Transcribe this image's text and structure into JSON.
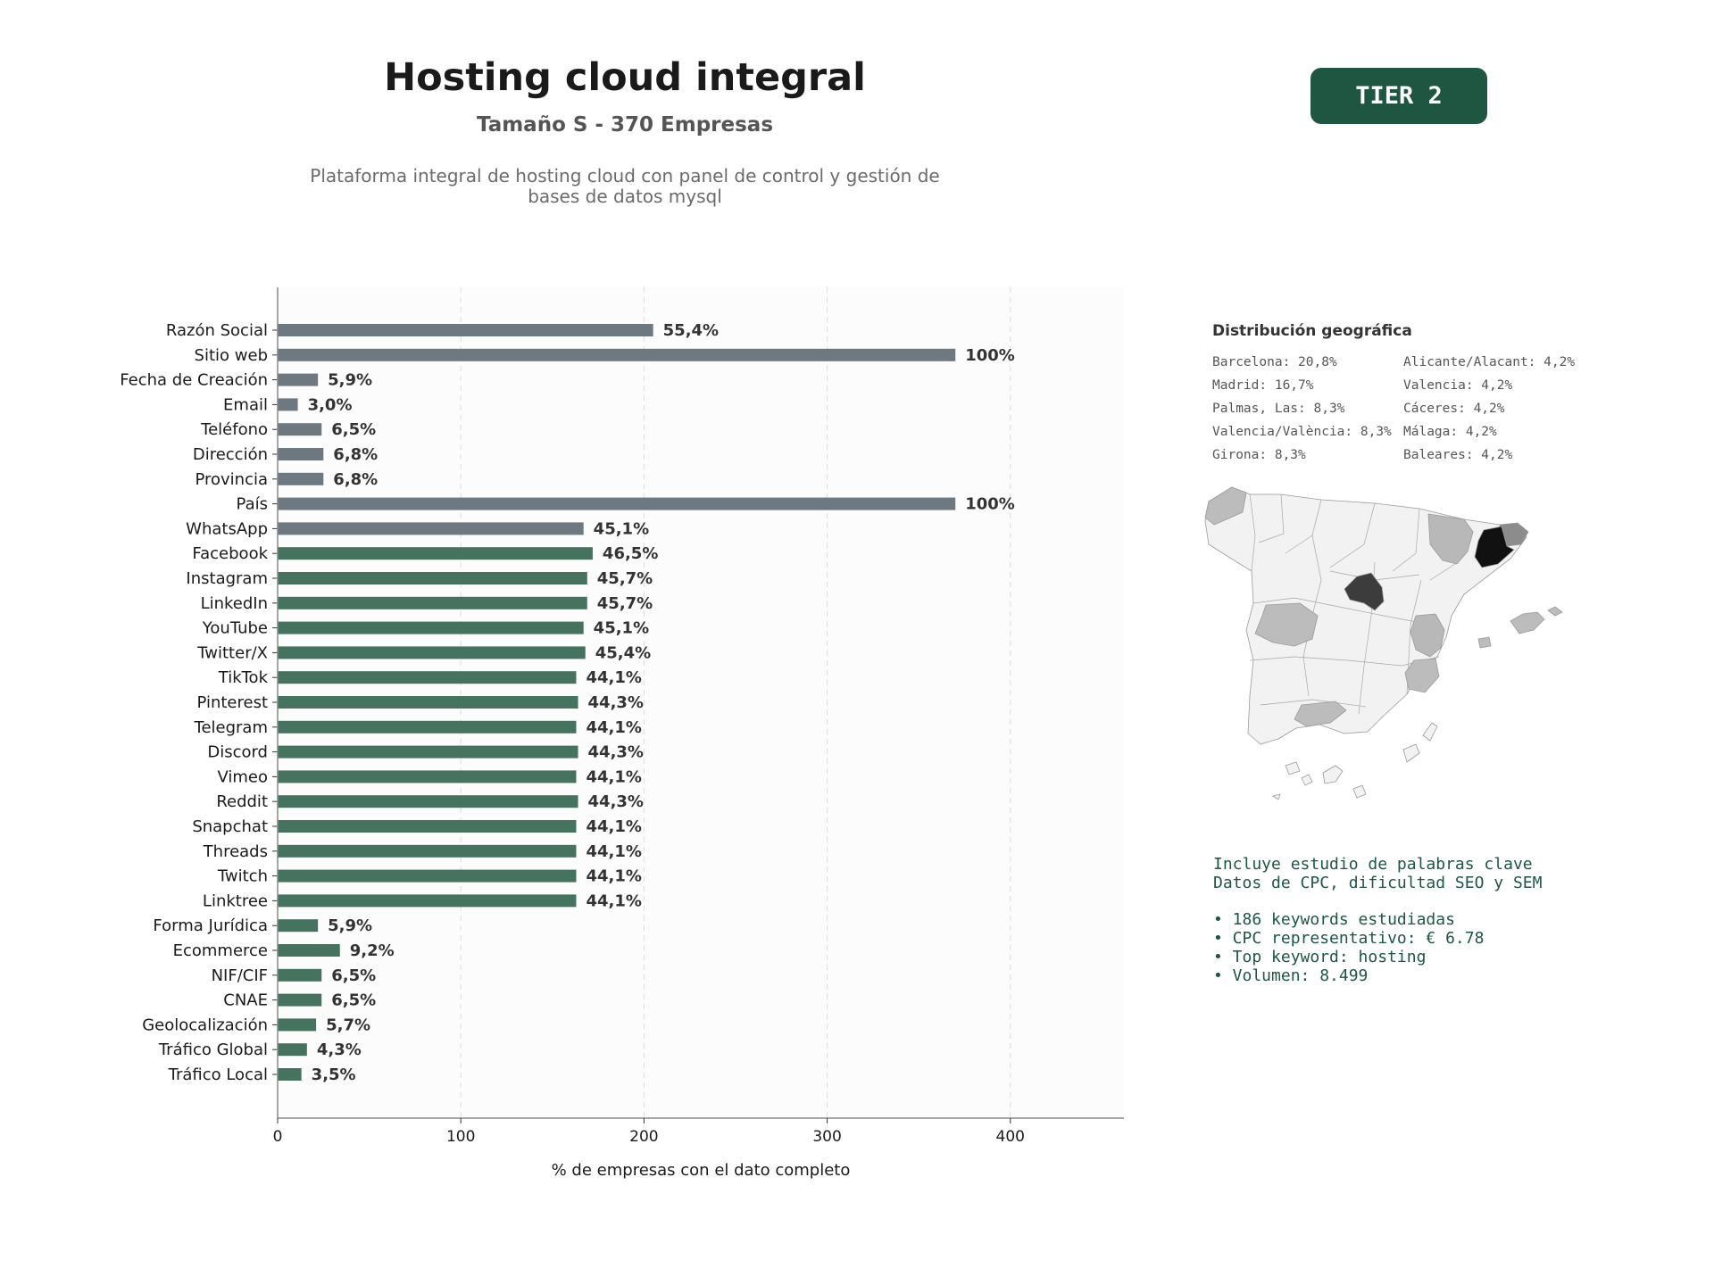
{
  "header": {
    "title": "Hosting cloud integral",
    "subtitle": "Tamaño S - 370 Empresas",
    "description_line1": "Plataforma integral de hosting cloud con panel de control y gestión de",
    "description_line2": "bases de datos mysql",
    "badge": "TIER 2"
  },
  "colors": {
    "gray_bar": "#6e7881",
    "green_bar": "#45735f",
    "badge": "#1e5641"
  },
  "chart_data": {
    "type": "bar",
    "orientation": "horizontal",
    "xlabel": "% de empresas con el dato completo",
    "xlim": [
      0,
      462
    ],
    "xticks": [
      0,
      100,
      200,
      300,
      400
    ],
    "grid": "vertical dashed",
    "categories": [
      "Razón Social",
      "Sitio web",
      "Fecha de Creación",
      "Email",
      "Teléfono",
      "Dirección",
      "Provincia",
      "País",
      "WhatsApp",
      "Facebook",
      "Instagram",
      "LinkedIn",
      "YouTube",
      "Twitter/X",
      "TikTok",
      "Pinterest",
      "Telegram",
      "Discord",
      "Vimeo",
      "Reddit",
      "Snapchat",
      "Threads",
      "Twitch",
      "Linktree",
      "Forma Jurídica",
      "Ecommerce",
      "NIF/CIF",
      "CNAE",
      "Geolocalización",
      "Tráfico Global",
      "Tráfico Local"
    ],
    "values": [
      205,
      370,
      22,
      11,
      24,
      25,
      25,
      370,
      167,
      172,
      169,
      169,
      167,
      168,
      163,
      164,
      163,
      164,
      163,
      164,
      163,
      163,
      163,
      163,
      22,
      34,
      24,
      24,
      21,
      16,
      13
    ],
    "labels": [
      "55,4%",
      "100%",
      "5,9%",
      "3,0%",
      "6,5%",
      "6,8%",
      "6,8%",
      "100%",
      "45,1%",
      "46,5%",
      "45,7%",
      "45,7%",
      "45,1%",
      "45,4%",
      "44,1%",
      "44,3%",
      "44,1%",
      "44,3%",
      "44,1%",
      "44,3%",
      "44,1%",
      "44,1%",
      "44,1%",
      "44,1%",
      "5,9%",
      "9,2%",
      "6,5%",
      "6,5%",
      "5,7%",
      "4,3%",
      "3,5%"
    ],
    "groups": [
      "gray",
      "gray",
      "gray",
      "gray",
      "gray",
      "gray",
      "gray",
      "gray",
      "gray",
      "green",
      "green",
      "green",
      "green",
      "green",
      "green",
      "green",
      "green",
      "green",
      "green",
      "green",
      "green",
      "green",
      "green",
      "green",
      "green",
      "green",
      "green",
      "green",
      "green",
      "green",
      "green"
    ]
  },
  "geo": {
    "title": "Distribución geográfica",
    "items": [
      "Barcelona: 20,8%",
      "Alicante/Alacant: 4,2%",
      "Madrid: 16,7%",
      "Valencia: 4,2%",
      "Palmas, Las: 8,3%",
      "Cáceres: 4,2%",
      "Valencia/València: 8,3%",
      "Málaga: 4,2%",
      "Girona: 8,3%",
      "Baleares: 4,2%"
    ]
  },
  "keywords": {
    "line1": "Incluye estudio de palabras clave",
    "line2": "Datos de CPC, dificultad SEO y SEM",
    "bullets": [
      "• 186 keywords estudiadas",
      "• CPC representativo: € 6.78",
      "• Top keyword: hosting",
      "• Volumen: 8.499"
    ]
  }
}
